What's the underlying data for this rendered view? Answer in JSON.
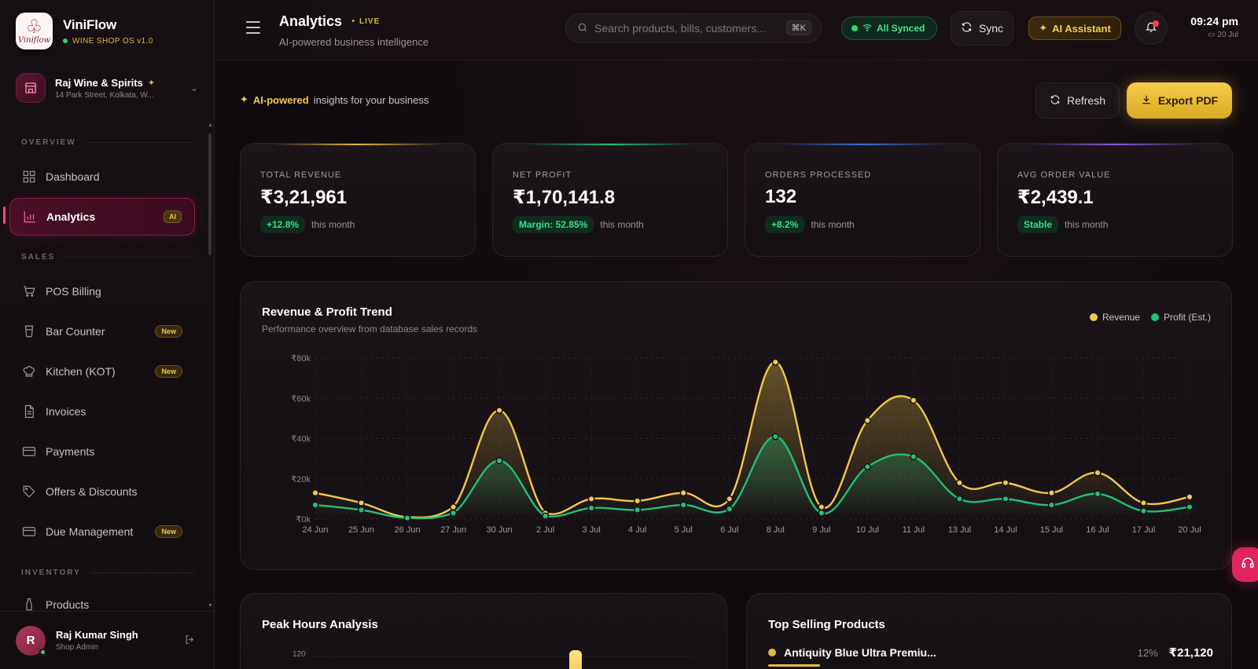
{
  "brand": {
    "name": "ViniFlow",
    "sub": "WINE SHOP OS v1.0",
    "logo_text": "Viniflow"
  },
  "store": {
    "name": "Raj Wine & Spirits",
    "address": "14 Park Street, Kolkata, W..."
  },
  "nav": {
    "sections": {
      "overview": "OVERVIEW",
      "sales": "SALES",
      "inventory": "INVENTORY"
    },
    "items": [
      {
        "label": "Dashboard",
        "icon": "grid-icon"
      },
      {
        "label": "Analytics",
        "icon": "bar-chart-icon",
        "badge": "AI",
        "active": true
      },
      {
        "label": "POS Billing",
        "icon": "cart-icon"
      },
      {
        "label": "Bar Counter",
        "icon": "glass-icon",
        "badge": "New"
      },
      {
        "label": "Kitchen (KOT)",
        "icon": "chef-hat-icon",
        "badge": "New"
      },
      {
        "label": "Invoices",
        "icon": "document-icon"
      },
      {
        "label": "Payments",
        "icon": "card-icon"
      },
      {
        "label": "Offers & Discounts",
        "icon": "tag-icon"
      },
      {
        "label": "Due Management",
        "icon": "card-icon",
        "badge": "New"
      },
      {
        "label": "Products",
        "icon": "bottle-icon"
      }
    ]
  },
  "user": {
    "initial": "R",
    "name": "Raj Kumar Singh",
    "role": "Shop Admin"
  },
  "header": {
    "title": "Analytics",
    "live": "LIVE",
    "subtitle": "AI-powered business intelligence",
    "search_placeholder": "Search products, bills, customers...",
    "search_shortcut": "⌘K",
    "sync_status": "All Synced",
    "sync_button": "Sync",
    "ai_button": "AI Assistant",
    "time": "09:24 pm",
    "date": "20 Jul"
  },
  "insights": {
    "highlight": "AI-powered",
    "text": "insights for your business"
  },
  "actions": {
    "refresh": "Refresh",
    "export": "Export PDF"
  },
  "stats": [
    {
      "label": "TOTAL REVENUE",
      "value": "₹3,21,961",
      "pill": "+12.8%",
      "foot": "this month",
      "accent": "#e0b941"
    },
    {
      "label": "NET PROFIT",
      "value": "₹1,70,141.8",
      "pill": "Margin: 52.85%",
      "foot": "this month",
      "accent": "#21c07a"
    },
    {
      "label": "ORDERS PROCESSED",
      "value": "132",
      "pill": "+8.2%",
      "foot": "this month",
      "accent": "#3b6fd8"
    },
    {
      "label": "AVG ORDER VALUE",
      "value": "₹2,439.1",
      "pill": "Stable",
      "foot": "this month",
      "accent": "#8a5be0"
    }
  ],
  "chart": {
    "title": "Revenue & Profit Trend",
    "subtitle": "Performance overview from database sales records",
    "legend": [
      "Revenue",
      "Profit (Est.)"
    ]
  },
  "chart_data": {
    "type": "area",
    "categories": [
      "24 Jun",
      "25 Jun",
      "26 Jun",
      "27 Jun",
      "30 Jun",
      "2 Jul",
      "3 Jul",
      "4 Jul",
      "5 Jul",
      "6 Jul",
      "8 Jul",
      "9 Jul",
      "10 Jul",
      "11 Jul",
      "13 Jul",
      "14 Jul",
      "15 Jul",
      "16 Jul",
      "17 Jul",
      "20 Jul"
    ],
    "series": [
      {
        "name": "Revenue",
        "color": "#f2c94c",
        "values": [
          13000,
          8000,
          1000,
          6000,
          54000,
          3000,
          10000,
          9000,
          13000,
          10000,
          78000,
          6000,
          49000,
          59000,
          18000,
          18000,
          13000,
          23000,
          8000,
          11000
        ]
      },
      {
        "name": "Profit (Est.)",
        "color": "#21c07a",
        "values": [
          7000,
          4500,
          500,
          3000,
          29000,
          1500,
          5500,
          4500,
          7000,
          5000,
          41000,
          3000,
          26000,
          31000,
          10000,
          10000,
          7000,
          12500,
          4000,
          6000
        ]
      }
    ],
    "yticks": [
      "₹0k",
      "₹20k",
      "₹40k",
      "₹60k",
      "₹80k"
    ],
    "ylim": [
      0,
      80000
    ],
    "grid": true,
    "legend_position": "top-right"
  },
  "peak": {
    "title": "Peak Hours Analysis",
    "y_tick": "120"
  },
  "top_products": {
    "title": "Top Selling Products",
    "items": [
      {
        "name": "Antiquity Blue Ultra Premiu...",
        "pct": "12%",
        "amount": "₹21,120"
      }
    ]
  }
}
